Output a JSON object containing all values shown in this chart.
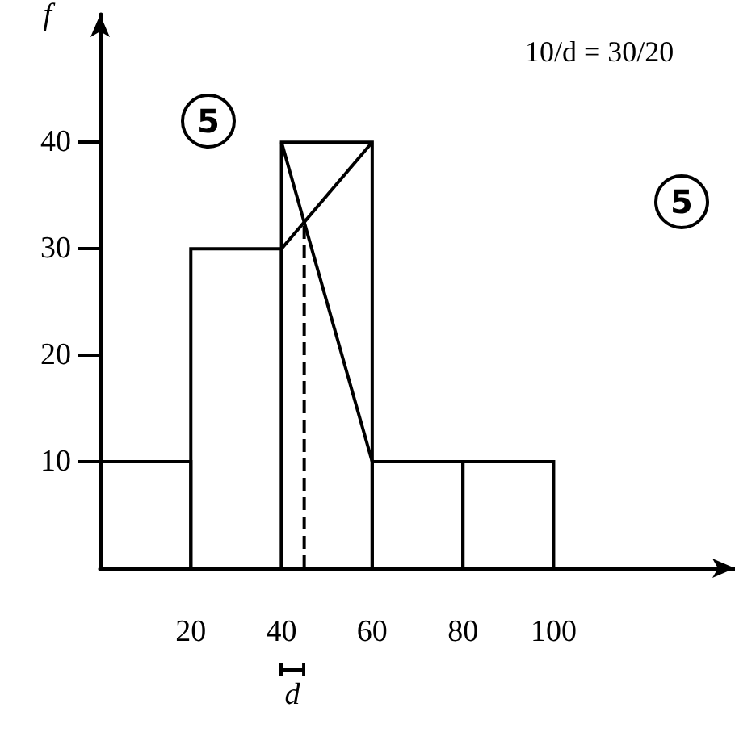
{
  "chart_data": {
    "type": "histogram",
    "ylabel": "f",
    "bins": [
      0,
      20,
      40,
      60,
      80,
      100
    ],
    "values": [
      10,
      30,
      40,
      10,
      10
    ],
    "color": "#000000",
    "series": [
      {
        "type": "line",
        "x": [
          40,
          60
        ],
        "values": [
          30,
          40
        ],
        "color": "#000000"
      },
      {
        "type": "line",
        "x": [
          40,
          60
        ],
        "values": [
          40,
          10
        ],
        "color": "#000000"
      },
      {
        "type": "line",
        "x": [
          45,
          45
        ],
        "values": [
          0,
          32.5
        ],
        "color": "#000000",
        "line_style": "dashed"
      }
    ],
    "xlim": [
      0,
      140
    ],
    "xticks": [
      20,
      40,
      60,
      80,
      100
    ],
    "ylim": [
      0,
      52
    ],
    "yticks": [
      10,
      20,
      30,
      40
    ],
    "annotations": [
      "5",
      "5",
      "10/d = 30/20",
      "d"
    ],
    "grid": false,
    "marker": "none"
  }
}
